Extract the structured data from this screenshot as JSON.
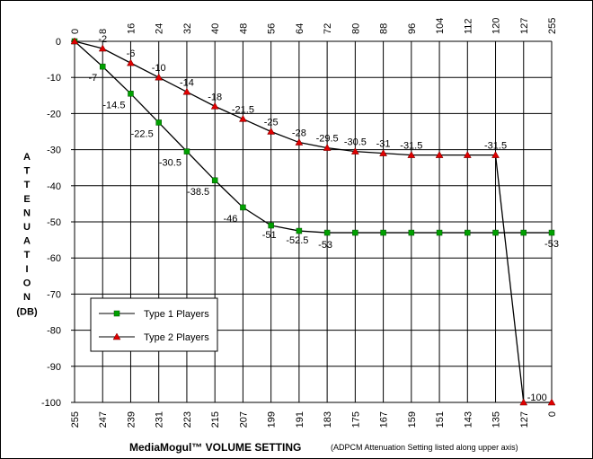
{
  "chart_data": {
    "type": "line",
    "ylabel": "ATTENUATION (DB)",
    "xlabel_main": "MediaMogul™ VOLUME SETTING",
    "xlabel_note": "(ADPCM Attenuation Setting listed along upper axis)",
    "x_bottom_ticks": [
      "255",
      "247",
      "239",
      "231",
      "223",
      "215",
      "207",
      "199",
      "191",
      "183",
      "175",
      "167",
      "159",
      "151",
      "143",
      "135",
      "127",
      "0"
    ],
    "x_top_ticks": [
      "0",
      "8",
      "16",
      "24",
      "32",
      "40",
      "48",
      "56",
      "64",
      "72",
      "80",
      "88",
      "96",
      "104",
      "112",
      "120",
      "127",
      "255"
    ],
    "y_ticks": [
      "0",
      "-10",
      "-20",
      "-30",
      "-40",
      "-50",
      "-60",
      "-70",
      "-80",
      "-90",
      "-100"
    ],
    "ylim": [
      -100,
      0
    ],
    "grid": true,
    "legend_position": "bottom-left",
    "series": [
      {
        "name": "Type 1 Players",
        "marker": "square",
        "color": "#00a000",
        "values": [
          0,
          -7,
          -14.5,
          -22.5,
          -30.5,
          -38.5,
          -46,
          -51,
          -52.5,
          -53,
          -53,
          -53,
          -53,
          -53,
          -53,
          -53,
          -53,
          -53
        ],
        "labels": [
          "",
          "-7",
          "-14.5",
          "-22.5",
          "-30.5",
          "-38.5",
          "-46",
          "-51",
          "-52.5",
          "-53",
          "",
          "",
          "",
          "",
          "",
          "",
          "",
          "-53"
        ]
      },
      {
        "name": "Type 2 Players",
        "marker": "triangle",
        "color": "#e00000",
        "values": [
          0,
          -2,
          -6,
          -10,
          -14,
          -18,
          -21.5,
          -25,
          -28,
          -29.5,
          -30.5,
          -31,
          -31.5,
          -31.5,
          -31.5,
          -31.5,
          -100,
          -100
        ],
        "labels": [
          "",
          "-2",
          "-6",
          "-10",
          "-14",
          "-18",
          "-21.5",
          "-25",
          "-28",
          "-29.5",
          "-30.5",
          "-31",
          "-31.5",
          "",
          "",
          "-31.5",
          "-100",
          ""
        ]
      }
    ]
  }
}
